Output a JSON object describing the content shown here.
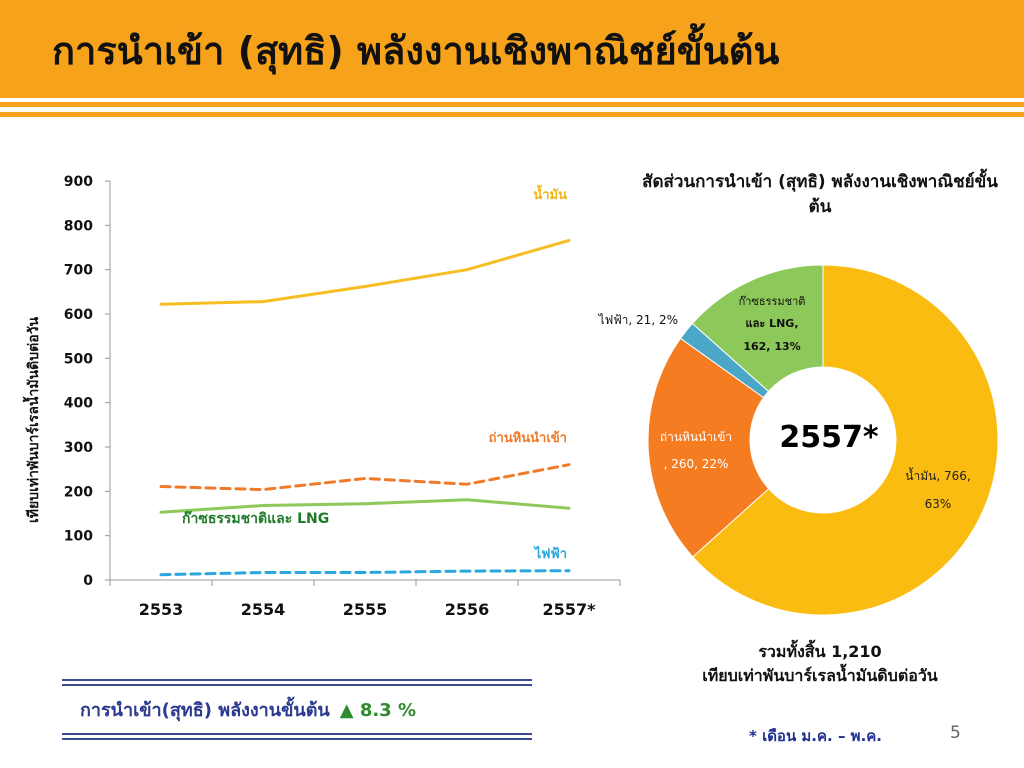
{
  "slide": {
    "title": "การนำเข้า (สุทธิ) พลังงานเชิงพาณิชย์ขั้นต้น",
    "page_number": "5",
    "footnote": "* เดือน ม.ค. – พ.ค."
  },
  "summary": {
    "label": "การนำเข้า(สุทธิ) พลังงานขั้นต้น",
    "change": "▲ 8.3 %"
  },
  "colors": {
    "header": "#F7A21B",
    "oil": "#F6BE22",
    "coal": "#F07A2A",
    "gas": "#8DC85A",
    "electricity": "#29A6DE",
    "donut_electricity": "#4BA7C8",
    "summary_text": "#2B3990",
    "gas_label": "#1F7A2A"
  },
  "chart_data": [
    {
      "type": "line",
      "title": "",
      "xlabel": "",
      "ylabel": "เทียบเท่าพันบาร์เรลน้ำมันดิบต่อวัน",
      "categories": [
        "2553",
        "2554",
        "2555",
        "2556",
        "2557*"
      ],
      "ylim": [
        0,
        900
      ],
      "yticks": [
        "0",
        "100",
        "200",
        "300",
        "400",
        "500",
        "600",
        "700",
        "800",
        "900"
      ],
      "grid": false,
      "series": [
        {
          "name": "น้ำมัน",
          "values": [
            622,
            628,
            662,
            700,
            766
          ],
          "color": "#F6BE22",
          "dashed": false
        },
        {
          "name": "ถ่านหินนำเข้า",
          "values": [
            211,
            204,
            229,
            216,
            260
          ],
          "color": "#F07A2A",
          "dashed": true
        },
        {
          "name": "ก๊าซธรรมชาติและ LNG",
          "values": [
            153,
            168,
            172,
            181,
            162
          ],
          "color": "#8DC85A",
          "dashed": false
        },
        {
          "name": "ไฟฟ้า",
          "values": [
            12,
            17,
            17,
            20,
            21
          ],
          "color": "#29A6DE",
          "dashed": true
        }
      ]
    },
    {
      "type": "pie",
      "donut": true,
      "title": "สัดส่วนการนำเข้า (สุทธิ) พลังงานเชิงพาณิชย์ขั้นต้น",
      "center_label": "2557*",
      "total_label": "รวมทั้งสิ้น 1,210",
      "unit_label": "เทียบเท่าพันบาร์เรลน้ำมันดิบต่อวัน",
      "slices": [
        {
          "name": "น้ำมัน",
          "label_line1": "น้ำมัน, 766,",
          "label_line2": "63%",
          "value": 766,
          "percent": 63,
          "color": "#FBBC11"
        },
        {
          "name": "ถ่านหินนำเข้า",
          "label_line1": "ถ่านหินนำเข้า",
          "label_line2": ", 260, 22%",
          "value": 260,
          "percent": 22,
          "color": "#F67C21"
        },
        {
          "name": "ไฟฟ้า",
          "label_line1": "ไฟฟ้า, 21, 2%",
          "value": 21,
          "percent": 2,
          "color": "#4BA7C8"
        },
        {
          "name": "ก๊าซธรรมชาติและ LNG",
          "label_line1": "ก๊าซธรรมชาติ",
          "label_line2": "และ LNG,",
          "label_line3": "162, 13%",
          "value": 162,
          "percent": 13,
          "color": "#8DC85A"
        }
      ]
    }
  ]
}
